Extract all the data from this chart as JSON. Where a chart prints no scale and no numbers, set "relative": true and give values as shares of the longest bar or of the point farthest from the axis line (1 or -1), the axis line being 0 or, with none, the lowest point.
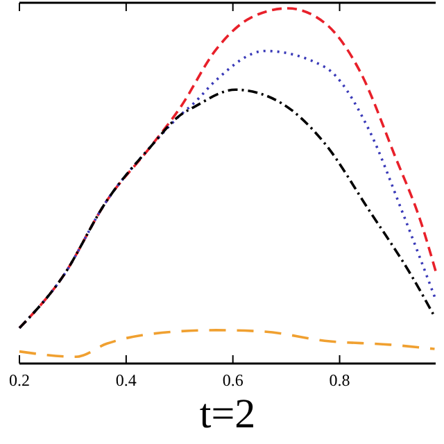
{
  "chart_data": {
    "type": "line",
    "relative": true,
    "annotations": [
      "t=2"
    ],
    "xlim": [
      0.2,
      0.98
    ],
    "xticks": [
      0.2,
      0.4,
      0.6,
      0.8
    ],
    "grid": false,
    "marker": "none",
    "series": [
      {
        "color": "#e8202a",
        "line_style": "dashed",
        "x": [
          0.2,
          0.281,
          0.364,
          0.445,
          0.502,
          0.568,
          0.634,
          0.703,
          0.772,
          0.838,
          0.904,
          0.953,
          0.98
        ],
        "values": [
          0.1,
          0.244,
          0.459,
          0.609,
          0.722,
          0.883,
          0.974,
          1.0,
          0.959,
          0.823,
          0.583,
          0.395,
          0.26
        ]
      },
      {
        "color": "#3a3ab8",
        "line_style": "dotted",
        "x": [
          0.2,
          0.281,
          0.364,
          0.445,
          0.502,
          0.527,
          0.568,
          0.661,
          0.772,
          0.855,
          0.919,
          0.98
        ],
        "values": [
          0.1,
          0.244,
          0.459,
          0.609,
          0.7,
          0.733,
          0.797,
          0.88,
          0.835,
          0.658,
          0.421,
          0.18
        ]
      },
      {
        "color": "#000000",
        "line_style": "dashdot",
        "x": [
          0.2,
          0.281,
          0.364,
          0.445,
          0.502,
          0.527,
          0.605,
          0.691,
          0.772,
          0.855,
          0.936,
          0.978
        ],
        "values": [
          0.1,
          0.244,
          0.459,
          0.609,
          0.7,
          0.722,
          0.771,
          0.733,
          0.62,
          0.432,
          0.244,
          0.132
        ]
      },
      {
        "color": "#f0a030",
        "line_style": "longdash",
        "x": [
          0.2,
          0.306,
          0.364,
          0.445,
          0.568,
          0.659,
          0.772,
          0.895,
          0.978
        ],
        "values": [
          0.034,
          0.019,
          0.056,
          0.083,
          0.094,
          0.09,
          0.064,
          0.053,
          0.041
        ]
      }
    ]
  }
}
